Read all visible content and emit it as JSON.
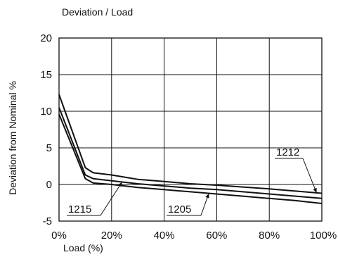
{
  "chart_data": {
    "type": "line",
    "title": "Deviation / Load",
    "xlabel": "Load (%)",
    "ylabel": "Deviation from Nominal %",
    "xlim": [
      0,
      100
    ],
    "ylim": [
      -5,
      20
    ],
    "grid": true,
    "x_ticks": [
      0,
      20,
      40,
      60,
      80,
      100
    ],
    "x_tick_labels": [
      "0%",
      "20%",
      "40%",
      "60%",
      "80%",
      "100%"
    ],
    "y_ticks": [
      -5,
      0,
      5,
      10,
      15,
      20
    ],
    "y_tick_labels": [
      "-5",
      "0",
      "5",
      "10",
      "15",
      "20"
    ],
    "series": [
      {
        "name": "1212",
        "x": [
          0,
          10,
          13,
          20,
          25,
          30,
          40,
          50,
          60,
          70,
          80,
          90,
          100
        ],
        "y": [
          12.3,
          2.3,
          1.6,
          1.3,
          1.0,
          0.7,
          0.4,
          0.1,
          -0.1,
          -0.35,
          -0.6,
          -0.9,
          -1.2
        ]
      },
      {
        "name": "1215",
        "x": [
          0,
          10,
          13,
          20,
          25,
          30,
          40,
          50,
          60,
          70,
          80,
          90,
          100
        ],
        "y": [
          10.5,
          1.3,
          0.8,
          0.5,
          0.3,
          0.1,
          -0.2,
          -0.5,
          -0.7,
          -1.0,
          -1.3,
          -1.6,
          -1.9
        ]
      },
      {
        "name": "1205",
        "x": [
          0,
          10,
          13,
          20,
          25,
          30,
          40,
          50,
          60,
          70,
          80,
          90,
          100
        ],
        "y": [
          9.6,
          0.8,
          0.2,
          0.0,
          -0.2,
          -0.4,
          -0.7,
          -1.0,
          -1.3,
          -1.6,
          -1.9,
          -2.2,
          -2.6
        ]
      }
    ],
    "annotations": [
      {
        "text": "1212",
        "series": "1212",
        "point_x": 98
      },
      {
        "text": "1215",
        "series": "1215",
        "point_x": 24
      },
      {
        "text": "1205",
        "series": "1205",
        "point_x": 57
      }
    ]
  }
}
